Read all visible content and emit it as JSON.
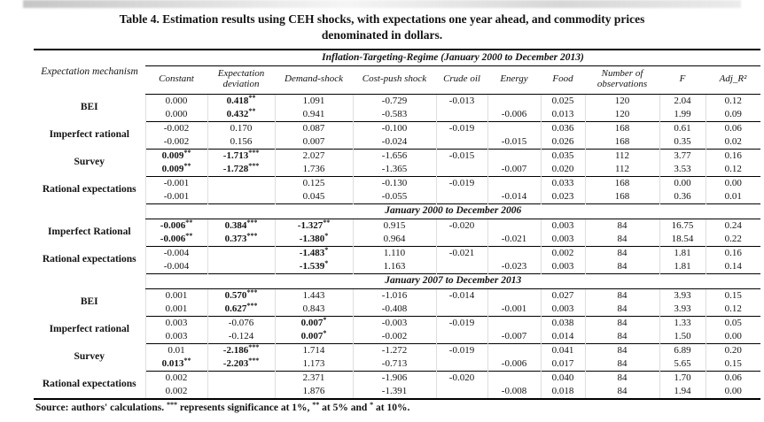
{
  "page": {
    "title_line1": "Table 4. Estimation results using CEH shocks, with expectations one year ahead, and commodity prices",
    "title_line2": "denominated in dollars.",
    "footnote": "Source: authors' calculations. *** represents significance at 1%, ** at 5% and * at 10%."
  },
  "table": {
    "row_label_header": "Expectation mechanism",
    "regime_header": "Inflation-Targeting-Regime (January 2000 to December 2013)",
    "columns": [
      "Constant",
      "Expectation deviation",
      "Demand-shock",
      "Cost-push shock",
      "Crude oil",
      "Energy",
      "Food",
      "Number of observations",
      "F",
      "Adj_R²"
    ],
    "sections": [
      {
        "period_header": "",
        "groups": [
          {
            "label": "BEI",
            "rows": [
              [
                "0.000",
                "0.418**",
                "1.091",
                "-0.729",
                "-0.013",
                "",
                "0.025",
                "120",
                "2.04",
                "0.12"
              ],
              [
                "0.000",
                "0.432**",
                "0.941",
                "-0.583",
                "",
                "-0.006",
                "0.013",
                "120",
                "1.99",
                "0.09"
              ]
            ]
          },
          {
            "label": "Imperfect rational",
            "rows": [
              [
                "-0.002",
                "0.170",
                "0.087",
                "-0.100",
                "-0.019",
                "",
                "0.036",
                "168",
                "0.61",
                "0.06"
              ],
              [
                "-0.002",
                "0.156",
                "0.007",
                "-0.024",
                "",
                "-0.015",
                "0.026",
                "168",
                "0.35",
                "0.02"
              ]
            ]
          },
          {
            "label": "Survey",
            "rows": [
              [
                "0.009**",
                "-1.713***",
                "2.027",
                "-1.656",
                "-0.015",
                "",
                "0.035",
                "112",
                "3.77",
                "0.16"
              ],
              [
                "0.009**",
                "-1.728***",
                "1.736",
                "-1.365",
                "",
                "-0.007",
                "0.020",
                "112",
                "3.53",
                "0.12"
              ]
            ]
          },
          {
            "label": "Rational expectations",
            "rows": [
              [
                "-0.001",
                "",
                "0.125",
                "-0.130",
                "-0.019",
                "",
                "0.033",
                "168",
                "0.00",
                "0.00"
              ],
              [
                "-0.001",
                "",
                "0.045",
                "-0.055",
                "",
                "-0.014",
                "0.023",
                "168",
                "0.36",
                "0.01"
              ]
            ]
          }
        ]
      },
      {
        "period_header": "January 2000 to December 2006",
        "groups": [
          {
            "label": "Imperfect Rational",
            "rows": [
              [
                "-0.006**",
                "0.384***",
                "-1.327**",
                "0.915",
                "-0.020",
                "",
                "0.003",
                "84",
                "16.75",
                "0.24"
              ],
              [
                "-0.006**",
                "0.373***",
                "-1.380*",
                "0.964",
                "",
                "-0.021",
                "0.003",
                "84",
                "18.54",
                "0.22"
              ]
            ]
          },
          {
            "label": "Rational expectations",
            "rows": [
              [
                "-0.004",
                "",
                "-1.483*",
                "1.110",
                "-0.021",
                "",
                "0.002",
                "84",
                "1.81",
                "0.16"
              ],
              [
                "-0.004",
                "",
                "-1.539*",
                "1.163",
                "",
                "-0.023",
                "0.003",
                "84",
                "1.81",
                "0.14"
              ]
            ]
          }
        ]
      },
      {
        "period_header": "January 2007 to December 2013",
        "groups": [
          {
            "label": "BEI",
            "rows": [
              [
                "0.001",
                "0.570***",
                "1.443",
                "-1.016",
                "-0.014",
                "",
                "0.027",
                "84",
                "3.93",
                "0.15"
              ],
              [
                "0.001",
                "0.627***",
                "0.843",
                "-0.408",
                "",
                "-0.001",
                "0.003",
                "84",
                "3.93",
                "0.12"
              ]
            ]
          },
          {
            "label": "Imperfect rational",
            "rows": [
              [
                "0.003",
                "-0.076",
                "0.007*",
                "-0.003",
                "-0.019",
                "",
                "0.038",
                "84",
                "1.33",
                "0.05"
              ],
              [
                "0.003",
                "-0.124",
                "0.007*",
                "-0.002",
                "",
                "-0.007",
                "0.014",
                "84",
                "1.50",
                "0.00"
              ]
            ]
          },
          {
            "label": "Survey",
            "rows": [
              [
                "0.01",
                "-2.186***",
                "1.714",
                "-1.272",
                "-0.019",
                "",
                "0.041",
                "84",
                "6.89",
                "0.20"
              ],
              [
                "0.013**",
                "-2.203***",
                "1.173",
                "-0.713",
                "",
                "-0.006",
                "0.017",
                "84",
                "5.65",
                "0.15"
              ]
            ]
          },
          {
            "label": "Rational expectations",
            "rows": [
              [
                "0.002",
                "",
                "2.371",
                "-1.906",
                "-0.020",
                "",
                "0.040",
                "84",
                "1.70",
                "0.06"
              ],
              [
                "0.002",
                "",
                "1.876",
                "-1.391",
                "",
                "-0.008",
                "0.018",
                "84",
                "1.94",
                "0.00"
              ]
            ]
          }
        ]
      }
    ]
  }
}
